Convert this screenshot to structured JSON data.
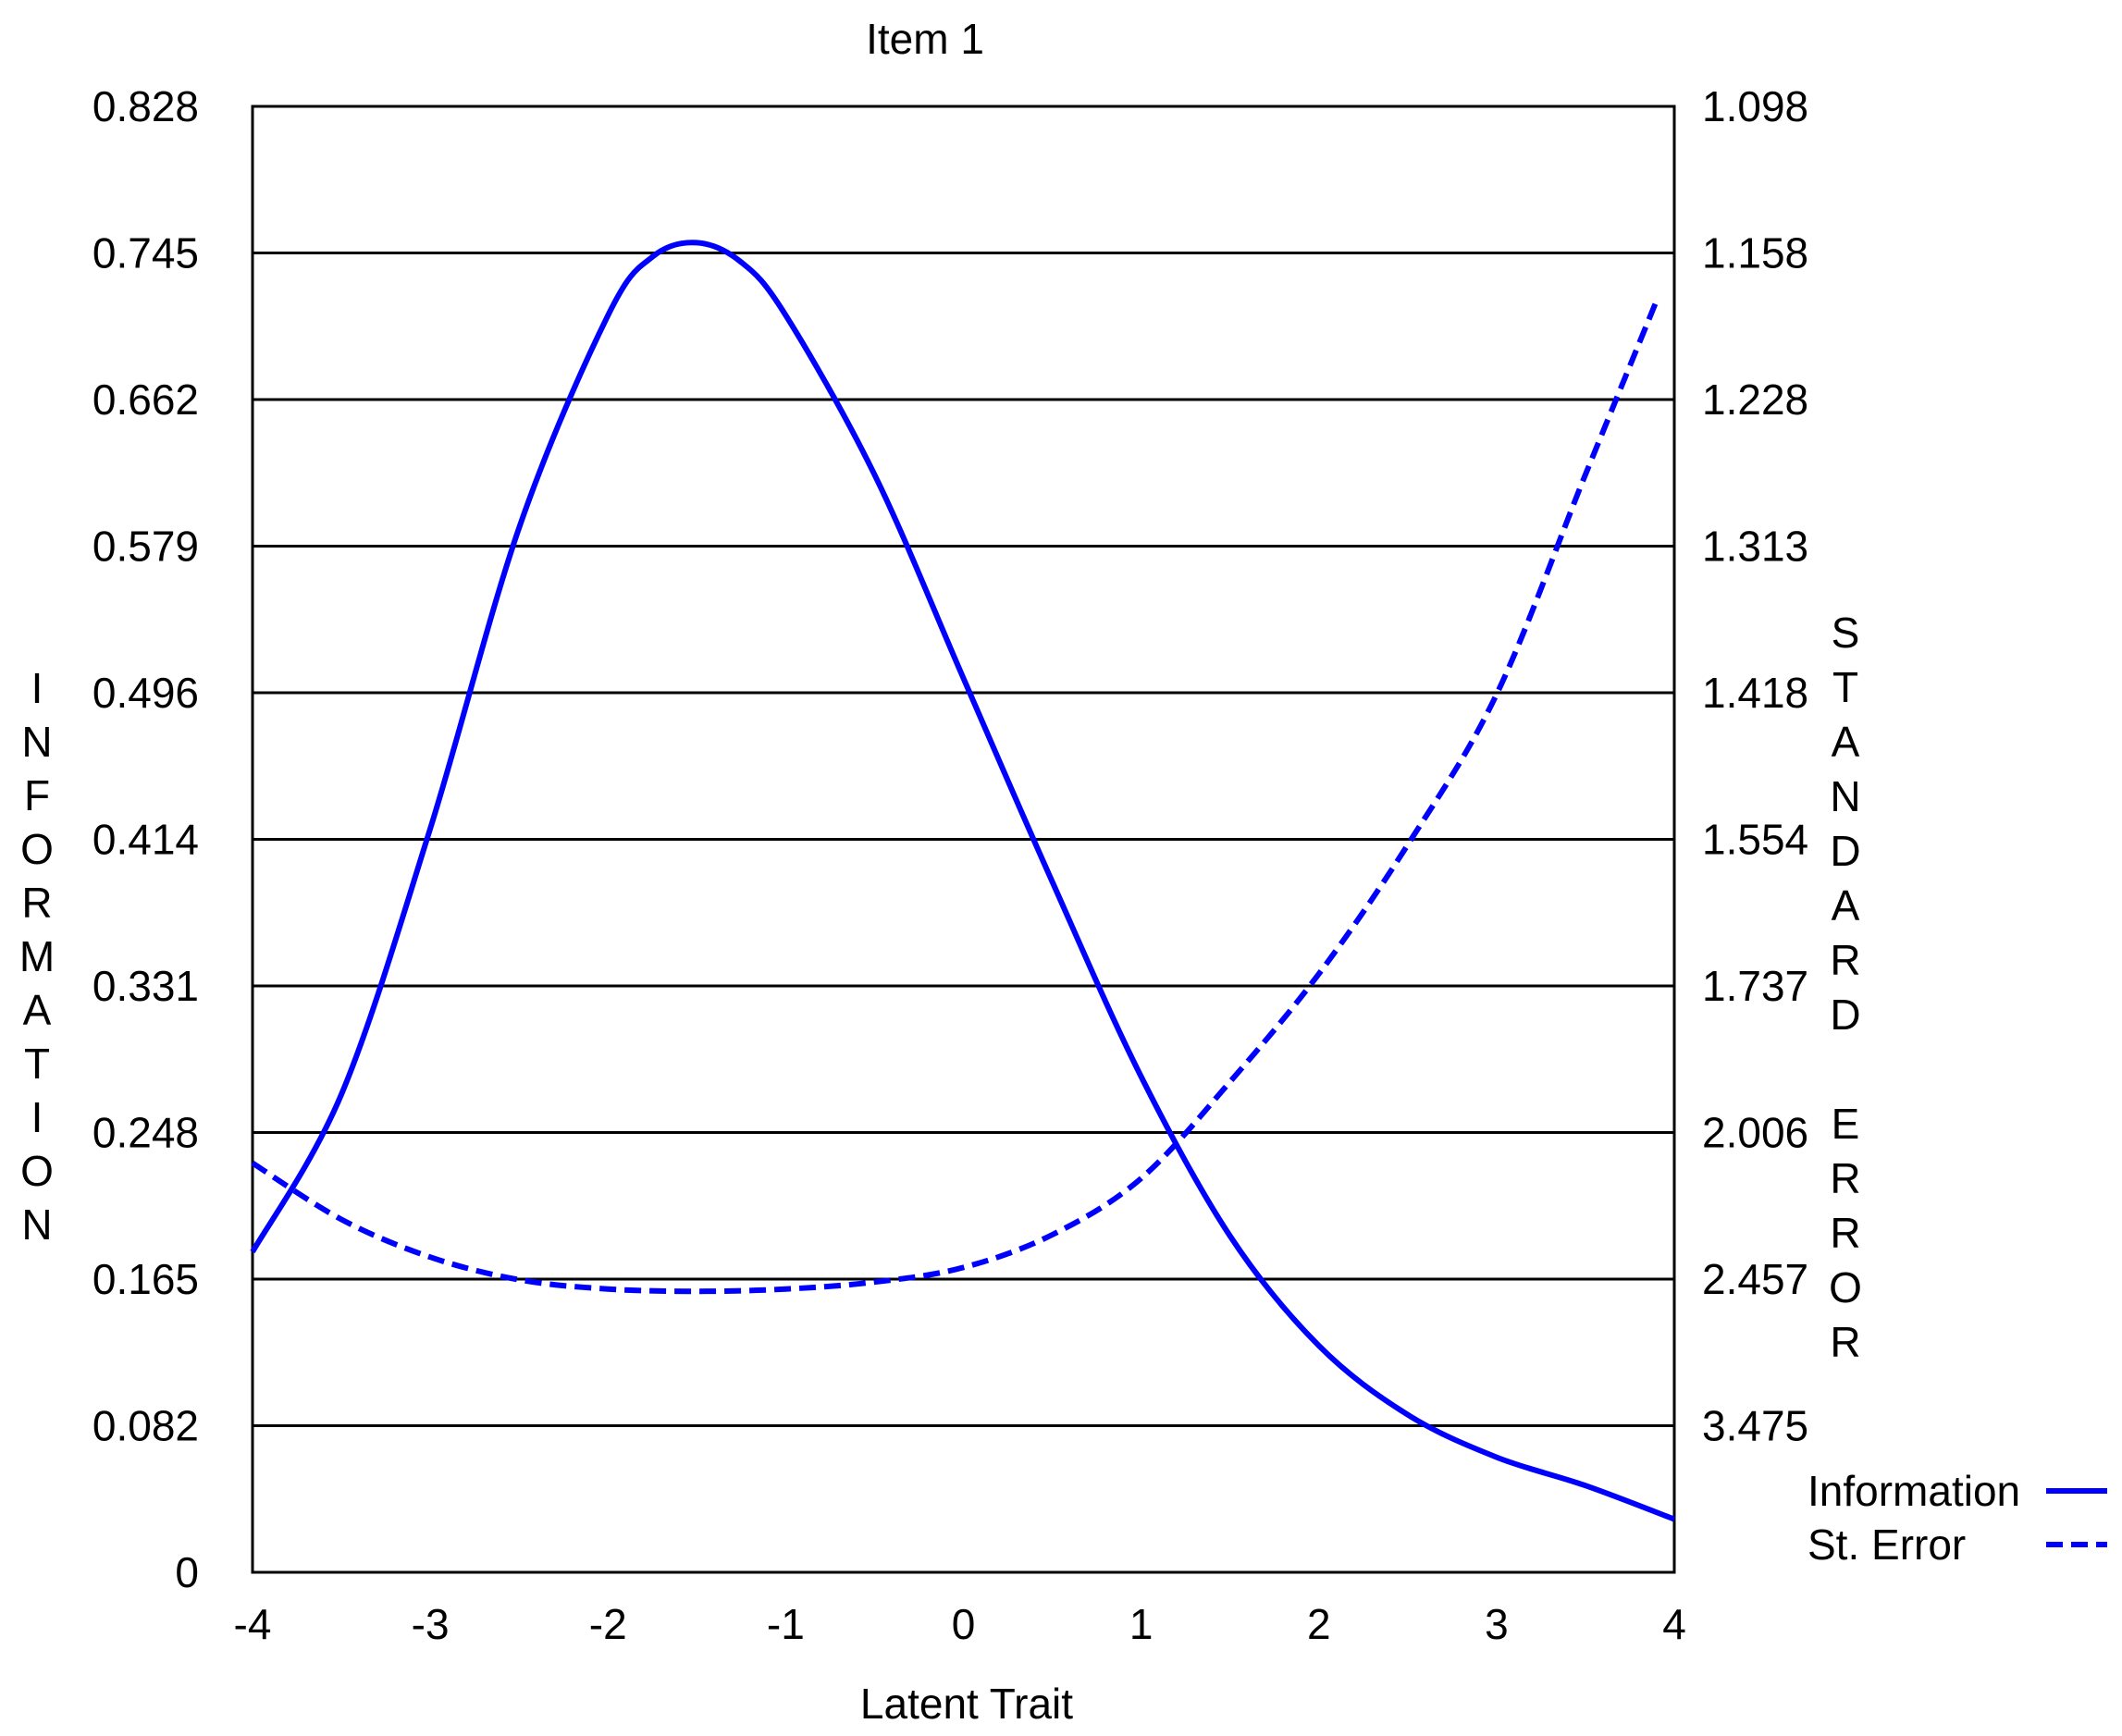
{
  "chart_data": {
    "type": "line",
    "title": "Item 1",
    "xlabel": "Latent Trait",
    "ylabel_left": "INFORMATION",
    "ylabel_right_lines": [
      "STANDARD",
      "ERROR"
    ],
    "xlim": [
      -4,
      4
    ],
    "x_ticks": [
      "-4",
      "-3",
      "-2",
      "-1",
      "0",
      "1",
      "2",
      "3",
      "4"
    ],
    "ylim_left": [
      0,
      0.828
    ],
    "left_ticks": [
      "0",
      "0.082",
      "0.165",
      "0.248",
      "0.331",
      "0.414",
      "0.496",
      "0.579",
      "0.662",
      "0.745",
      "0.828"
    ],
    "right_ticks": [
      "",
      "3.475",
      "2.457",
      "2.006",
      "1.737",
      "1.554",
      "1.418",
      "1.313",
      "1.228",
      "1.158",
      "1.098"
    ],
    "grid": true,
    "legend_position": "bottom-right",
    "series": [
      {
        "name": "Information",
        "style": "solid",
        "color": "#0000ff",
        "axis": "left",
        "x": [
          -4,
          -3.5,
          -3,
          -2.5,
          -2,
          -1.75,
          -1.5,
          -1.25,
          -1,
          -0.5,
          0,
          0.5,
          1,
          1.5,
          2,
          2.5,
          3,
          3.5,
          4
        ],
        "y": [
          0.181,
          0.27,
          0.42,
          0.59,
          0.71,
          0.743,
          0.751,
          0.74,
          0.71,
          0.62,
          0.505,
          0.39,
          0.28,
          0.19,
          0.128,
          0.089,
          0.065,
          0.049,
          0.03
        ]
      },
      {
        "name": "St. Error",
        "style": "dashed",
        "color": "#0000ff",
        "axis": "right",
        "note_scale": "SE = 1/sqrt(I), plotted on left information scale",
        "x": [
          -4,
          -3.5,
          -3,
          -2.5,
          -2,
          -1.5,
          -1,
          -0.5,
          0,
          0.5,
          1,
          1.5,
          2,
          2.5,
          3,
          3.5,
          3.9
        ],
        "y": [
          2.08,
          2.24,
          2.37,
          2.46,
          2.5,
          2.51,
          2.5,
          2.47,
          2.41,
          2.29,
          2.12,
          1.9,
          1.72,
          1.56,
          1.42,
          1.27,
          1.18
        ]
      }
    ]
  }
}
